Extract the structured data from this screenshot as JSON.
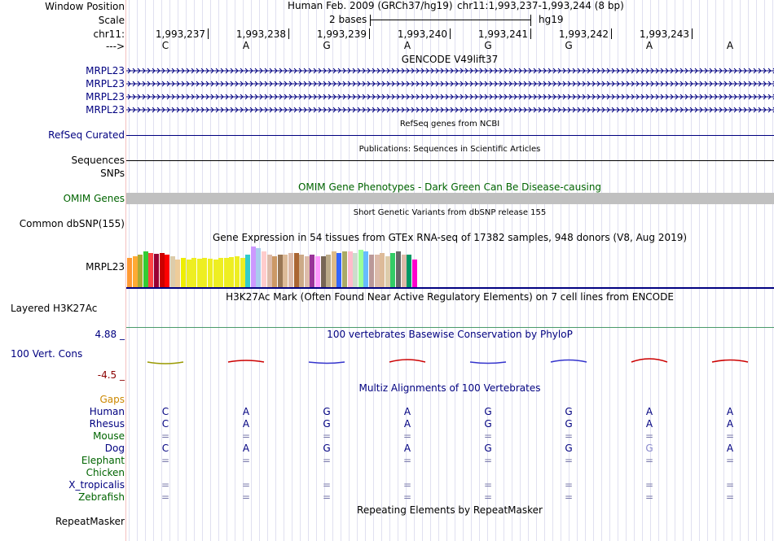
{
  "labels": {
    "window_position": "Window Position",
    "scale": "Scale",
    "chrom": "chr11:",
    "strand": "--->",
    "mrpl23_a": "MRPL23",
    "mrpl23_b": "MRPL23",
    "mrpl23_c": "MRPL23",
    "mrpl23_d": "MRPL23",
    "refseq": "RefSeq Curated",
    "sequences": "Sequences",
    "snps": "SNPs",
    "omim": "OMIM Genes",
    "dbsnp": "Common dbSNP(155)",
    "gtex_gene": "MRPL23",
    "h3k27ac": "Layered H3K27Ac",
    "cons_max": "4.88 _",
    "cons_name": "100 Vert. Cons",
    "cons_min": "-4.5 _",
    "gaps": "Gaps",
    "repeatmasker": "RepeatMasker"
  },
  "header": {
    "assembly": "Human Feb. 2009 (GRCh37/hg19)",
    "position": "chr11:1,993,237-1,993,244 (8 bp)",
    "scale_text": "2 bases",
    "scale_db": "hg19"
  },
  "ruler_ticks": [
    "1,993,237",
    "1,993,238",
    "1,993,239",
    "1,993,240",
    "1,993,241",
    "1,993,242",
    "1,993,243"
  ],
  "bases": [
    "C",
    "A",
    "G",
    "A",
    "G",
    "G",
    "A",
    "A"
  ],
  "tracks": {
    "gencode": "GENCODE V49lift37",
    "refseq": "RefSeq genes from NCBI",
    "publications": "Publications: Sequences in Scientific Articles",
    "omim": "OMIM Gene Phenotypes - Dark Green Can Be Disease-causing",
    "dbsnp": "Short Genetic Variants from dbSNP release 155",
    "gtex": "Gene Expression in 54 tissues from GTEx RNA-seq of 17382 samples, 948 donors (V8, Aug 2019)",
    "h3k27ac": "H3K27Ac Mark (Often Found Near Active Regulatory Elements) on 7 cell lines from ENCODE",
    "phylop": "100 vertebrates Basewise Conservation by PhyloP",
    "multiz": "Multiz Alignments of 100 Vertebrates",
    "repeatmasker": "Repeating Elements by RepeatMasker"
  },
  "gtex_bars": [
    {
      "color": "#ff9933",
      "h": 36
    },
    {
      "color": "#ffaa33",
      "h": 38
    },
    {
      "color": "#aaaa33",
      "h": 40
    },
    {
      "color": "#33cc33",
      "h": 44
    },
    {
      "color": "#ff4444",
      "h": 42
    },
    {
      "color": "#990033",
      "h": 41
    },
    {
      "color": "#cc0000",
      "h": 42
    },
    {
      "color": "#ff0000",
      "h": 40
    },
    {
      "color": "#ddccaa",
      "h": 38
    },
    {
      "color": "#eecc99",
      "h": 34
    },
    {
      "color": "#eeee00",
      "h": 36
    },
    {
      "color": "#eeee22",
      "h": 34
    },
    {
      "color": "#eeee22",
      "h": 36
    },
    {
      "color": "#eeee22",
      "h": 35
    },
    {
      "color": "#eeee22",
      "h": 36
    },
    {
      "color": "#eeee22",
      "h": 35
    },
    {
      "color": "#eeee22",
      "h": 34
    },
    {
      "color": "#eeee22",
      "h": 36
    },
    {
      "color": "#eeee22",
      "h": 36
    },
    {
      "color": "#eeee22",
      "h": 37
    },
    {
      "color": "#eeee22",
      "h": 38
    },
    {
      "color": "#eeee22",
      "h": 36
    },
    {
      "color": "#33cccc",
      "h": 40
    },
    {
      "color": "#cc99ff",
      "h": 50
    },
    {
      "color": "#aaccee",
      "h": 48
    },
    {
      "color": "#ffcccc",
      "h": 44
    },
    {
      "color": "#ddbbaa",
      "h": 40
    },
    {
      "color": "#cc9966",
      "h": 38
    },
    {
      "color": "#997755",
      "h": 40
    },
    {
      "color": "#ddbb99",
      "h": 40
    },
    {
      "color": "#ddbbaa",
      "h": 42
    },
    {
      "color": "#aa6633",
      "h": 42
    },
    {
      "color": "#ccaa88",
      "h": 40
    },
    {
      "color": "#ddbbaa",
      "h": 38
    },
    {
      "color": "#993399",
      "h": 40
    },
    {
      "color": "#ff99ff",
      "h": 38
    },
    {
      "color": "#776655",
      "h": 38
    },
    {
      "color": "#bbaa88",
      "h": 40
    },
    {
      "color": "#ddbb88",
      "h": 44
    },
    {
      "color": "#3366ff",
      "h": 42
    },
    {
      "color": "#aaaa66",
      "h": 44
    },
    {
      "color": "#ffbbcc",
      "h": 44
    },
    {
      "color": "#ccddcc",
      "h": 42
    },
    {
      "color": "#99ff99",
      "h": 46
    },
    {
      "color": "#66bbff",
      "h": 44
    },
    {
      "color": "#bb9999",
      "h": 40
    },
    {
      "color": "#ddbbaa",
      "h": 40
    },
    {
      "color": "#ddbb99",
      "h": 42
    },
    {
      "color": "#ddccaa",
      "h": 38
    },
    {
      "color": "#33cc66",
      "h": 42
    },
    {
      "color": "#666666",
      "h": 44
    },
    {
      "color": "#ddbbaa",
      "h": 40
    },
    {
      "color": "#009966",
      "h": 40
    },
    {
      "color": "#ff00cc",
      "h": 34
    }
  ],
  "species": [
    {
      "name": "Human",
      "color": "#000080",
      "row": [
        "C",
        "A",
        "G",
        "A",
        "G",
        "G",
        "A",
        "A"
      ]
    },
    {
      "name": "Rhesus",
      "color": "#000080",
      "row": [
        "C",
        "A",
        "G",
        "A",
        "G",
        "G",
        "A",
        "A"
      ]
    },
    {
      "name": "Mouse",
      "color": "#006400",
      "row": [
        "=",
        "=",
        "=",
        "=",
        "=",
        "=",
        "=",
        "="
      ]
    },
    {
      "name": "Dog",
      "color": "#000080",
      "row": [
        "C",
        "A",
        "G",
        "A",
        "G",
        "G",
        "G",
        "A"
      ]
    },
    {
      "name": "Elephant",
      "color": "#006400",
      "row": [
        "=",
        "=",
        "=",
        "=",
        "=",
        "=",
        "=",
        "="
      ]
    },
    {
      "name": "Chicken",
      "color": "#006400",
      "row": [
        "",
        "",
        "",
        "",
        "",
        "",
        "",
        ""
      ]
    },
    {
      "name": "X_tropicalis",
      "color": "#000080",
      "row": [
        "=",
        "=",
        "=",
        "=",
        "=",
        "=",
        "=",
        "="
      ]
    },
    {
      "name": "Zebrafish",
      "color": "#006400",
      "row": [
        "=",
        "=",
        "=",
        "=",
        "=",
        "=",
        "=",
        "="
      ]
    }
  ],
  "colors": {
    "label_blue": "#000080",
    "omim_green": "#006400",
    "gaps_orange": "#cc8800",
    "cons_red": "#8b0000"
  }
}
